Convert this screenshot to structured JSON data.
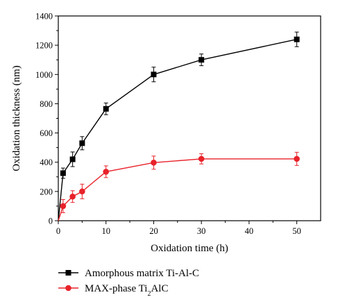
{
  "chart_data": {
    "type": "line",
    "xlabel": "Oxidation time (h)",
    "ylabel": "Oxidation thickness (nm)",
    "xlim": [
      0,
      55
    ],
    "ylim": [
      0,
      1400
    ],
    "xticks": [
      0,
      10,
      20,
      30,
      40,
      50
    ],
    "yticks": [
      0,
      200,
      400,
      600,
      800,
      1000,
      1200,
      1400
    ],
    "grid": false,
    "legend_position": "bottom-left-outside",
    "series": [
      {
        "name_main": "Amorphous matrix Ti-Al-C",
        "name_sub": "",
        "name_tail": "",
        "marker": "square",
        "color": "#000000",
        "x": [
          0,
          1,
          3,
          5,
          10,
          20,
          30,
          50
        ],
        "y": [
          0,
          325,
          420,
          530,
          765,
          1000,
          1100,
          1240
        ],
        "err": [
          0,
          35,
          50,
          45,
          40,
          50,
          40,
          50
        ]
      },
      {
        "name_main": "MAX-phase Ti",
        "name_sub": "2",
        "name_tail": "AlC",
        "marker": "circle",
        "color": "#e8222a",
        "x": [
          0,
          1,
          3,
          5,
          10,
          20,
          30,
          50
        ],
        "y": [
          0,
          100,
          165,
          200,
          335,
          397,
          423,
          423
        ],
        "err": [
          0,
          45,
          40,
          50,
          40,
          45,
          35,
          45
        ]
      }
    ]
  }
}
